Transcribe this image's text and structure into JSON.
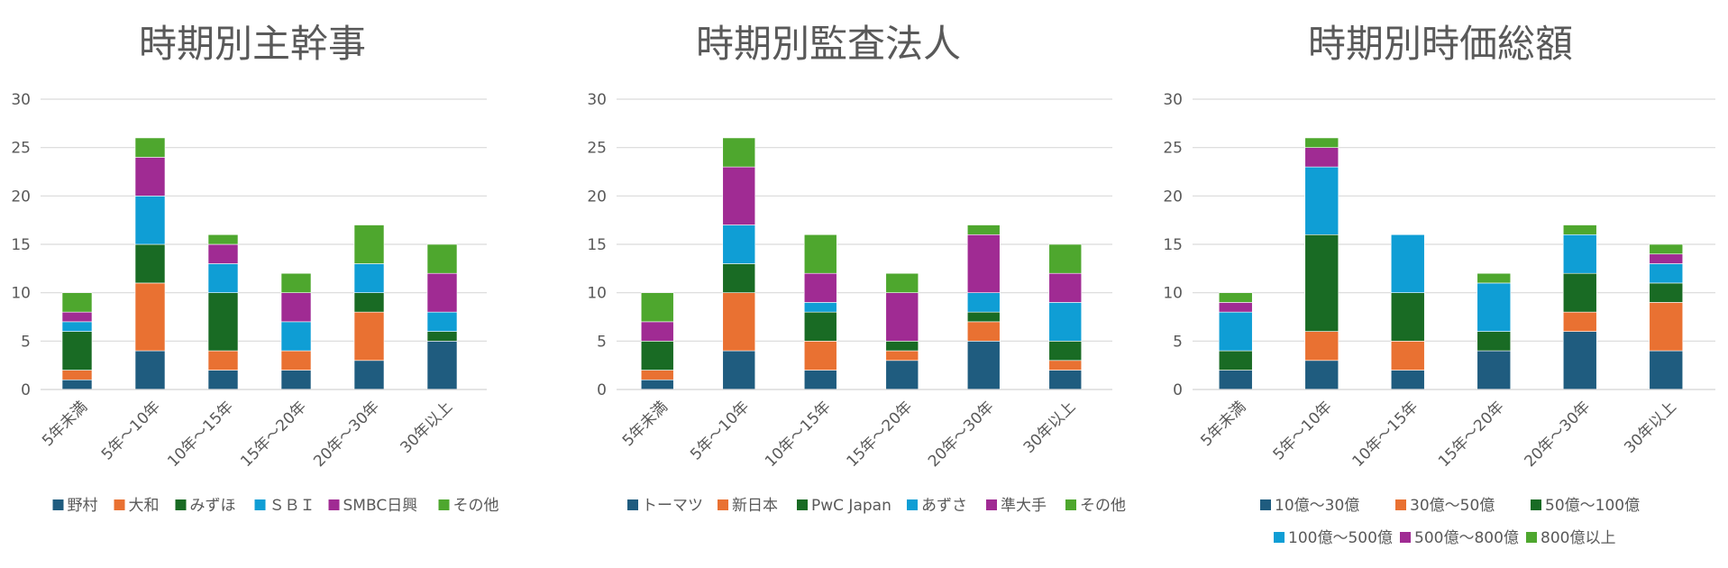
{
  "chart_data": [
    {
      "type": "bar",
      "stacked": true,
      "title": "時期別主幹事",
      "categories": [
        "5年未満",
        "5年～10年",
        "10年～15年",
        "15年～20年",
        "20年～30年",
        "30年以上"
      ],
      "ylim": [
        0,
        30
      ],
      "yticks": [
        0,
        5,
        10,
        15,
        20,
        25,
        30
      ],
      "grid": true,
      "legend": "bottom",
      "series": [
        {
          "name": "野村",
          "color": "#1f5c7f",
          "values": [
            1,
            4,
            2,
            2,
            3,
            5
          ]
        },
        {
          "name": "大和",
          "color": "#e97132",
          "values": [
            1,
            7,
            2,
            2,
            5,
            0
          ]
        },
        {
          "name": "みずほ",
          "color": "#196b24",
          "values": [
            4,
            4,
            6,
            0,
            2,
            1
          ]
        },
        {
          "name": "ＳＢＩ",
          "color": "#0f9ed5",
          "values": [
            1,
            5,
            3,
            3,
            3,
            2
          ]
        },
        {
          "name": "SMBC日興",
          "color": "#a02b93",
          "values": [
            1,
            4,
            2,
            3,
            0,
            4
          ]
        },
        {
          "name": "その他",
          "color": "#4ea72e",
          "values": [
            2,
            2,
            1,
            2,
            4,
            3
          ]
        }
      ]
    },
    {
      "type": "bar",
      "stacked": true,
      "title": "時期別監査法人",
      "categories": [
        "5年未満",
        "5年～10年",
        "10年～15年",
        "15年～20年",
        "20年～30年",
        "30年以上"
      ],
      "ylim": [
        0,
        30
      ],
      "yticks": [
        0,
        5,
        10,
        15,
        20,
        25,
        30
      ],
      "grid": true,
      "legend": "bottom",
      "series": [
        {
          "name": "トーマツ",
          "color": "#1f5c7f",
          "values": [
            1,
            4,
            2,
            3,
            5,
            2
          ]
        },
        {
          "name": "新日本",
          "color": "#e97132",
          "values": [
            1,
            6,
            3,
            1,
            2,
            1
          ]
        },
        {
          "name": "PwC Japan",
          "color": "#196b24",
          "values": [
            3,
            3,
            3,
            1,
            1,
            2
          ]
        },
        {
          "name": "あずさ",
          "color": "#0f9ed5",
          "values": [
            0,
            4,
            1,
            0,
            2,
            4
          ]
        },
        {
          "name": "準大手",
          "color": "#a02b93",
          "values": [
            2,
            6,
            3,
            5,
            6,
            3
          ]
        },
        {
          "name": "その他",
          "color": "#4ea72e",
          "values": [
            3,
            3,
            4,
            2,
            1,
            3
          ]
        }
      ]
    },
    {
      "type": "bar",
      "stacked": true,
      "title": "時期別時価総額",
      "categories": [
        "5年未満",
        "5年～10年",
        "10年～15年",
        "15年～20年",
        "20年～30年",
        "30年以上"
      ],
      "ylim": [
        0,
        30
      ],
      "yticks": [
        0,
        5,
        10,
        15,
        20,
        25,
        30
      ],
      "grid": true,
      "legend": "bottom",
      "series": [
        {
          "name": "10億～30億",
          "color": "#1f5c7f",
          "values": [
            2,
            3,
            2,
            4,
            6,
            4
          ]
        },
        {
          "name": "30億～50億",
          "color": "#e97132",
          "values": [
            0,
            3,
            3,
            0,
            2,
            5
          ]
        },
        {
          "name": "50億～100億",
          "color": "#196b24",
          "values": [
            2,
            10,
            5,
            2,
            4,
            2
          ]
        },
        {
          "name": "100億～500億",
          "color": "#0f9ed5",
          "values": [
            4,
            7,
            6,
            5,
            4,
            2
          ]
        },
        {
          "name": "500億～800億",
          "color": "#a02b93",
          "values": [
            1,
            2,
            0,
            0,
            0,
            1
          ]
        },
        {
          "name": "800億以上",
          "color": "#4ea72e",
          "values": [
            1,
            1,
            0,
            1,
            1,
            1
          ]
        }
      ]
    }
  ]
}
